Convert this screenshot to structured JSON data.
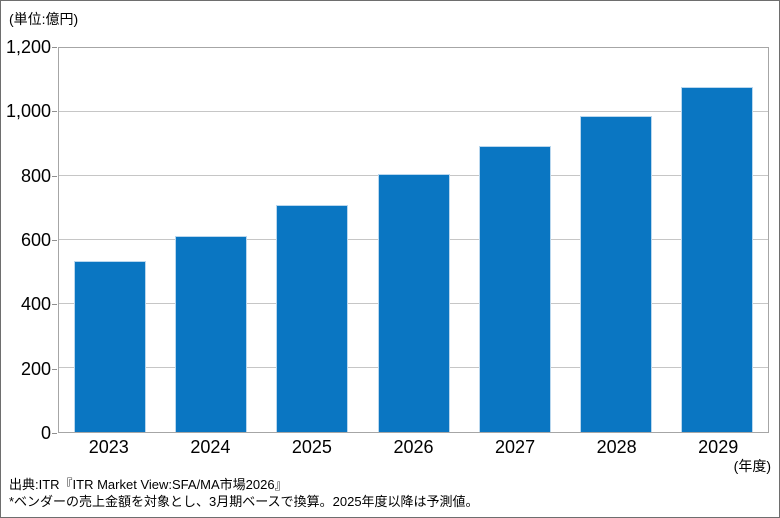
{
  "chart": {
    "unit_label": "(単位:億円)",
    "x_unit_label": "(年度)"
  },
  "footer": {
    "source_line1": "出典:ITR『ITR Market View:SFA/MA市場2026』",
    "source_line2": "*ベンダーの売上金額を対象とし、3月期ベースで換算。2025年度以降は予測値。"
  },
  "colors": {
    "bar_fill": "#0a76c2",
    "bar_border": "#b9d7ee",
    "gridline": "#c6c6c6",
    "plot_border": "#a6a6a6",
    "axis_text": "#000000"
  },
  "chart_data": {
    "type": "bar",
    "categories": [
      "2023",
      "2024",
      "2025",
      "2026",
      "2027",
      "2028",
      "2029"
    ],
    "values": [
      535,
      612,
      710,
      805,
      895,
      987,
      1078
    ],
    "title": "",
    "xlabel": "(年度)",
    "ylabel": "(単位:億円)",
    "ylim": [
      0,
      1200
    ],
    "ytick_interval": 200,
    "ytick_labels": [
      "0",
      "200",
      "400",
      "600",
      "800",
      "1,000",
      "1,200"
    ],
    "grid": true,
    "legend": false,
    "note": "2025年度以降は予測値"
  }
}
